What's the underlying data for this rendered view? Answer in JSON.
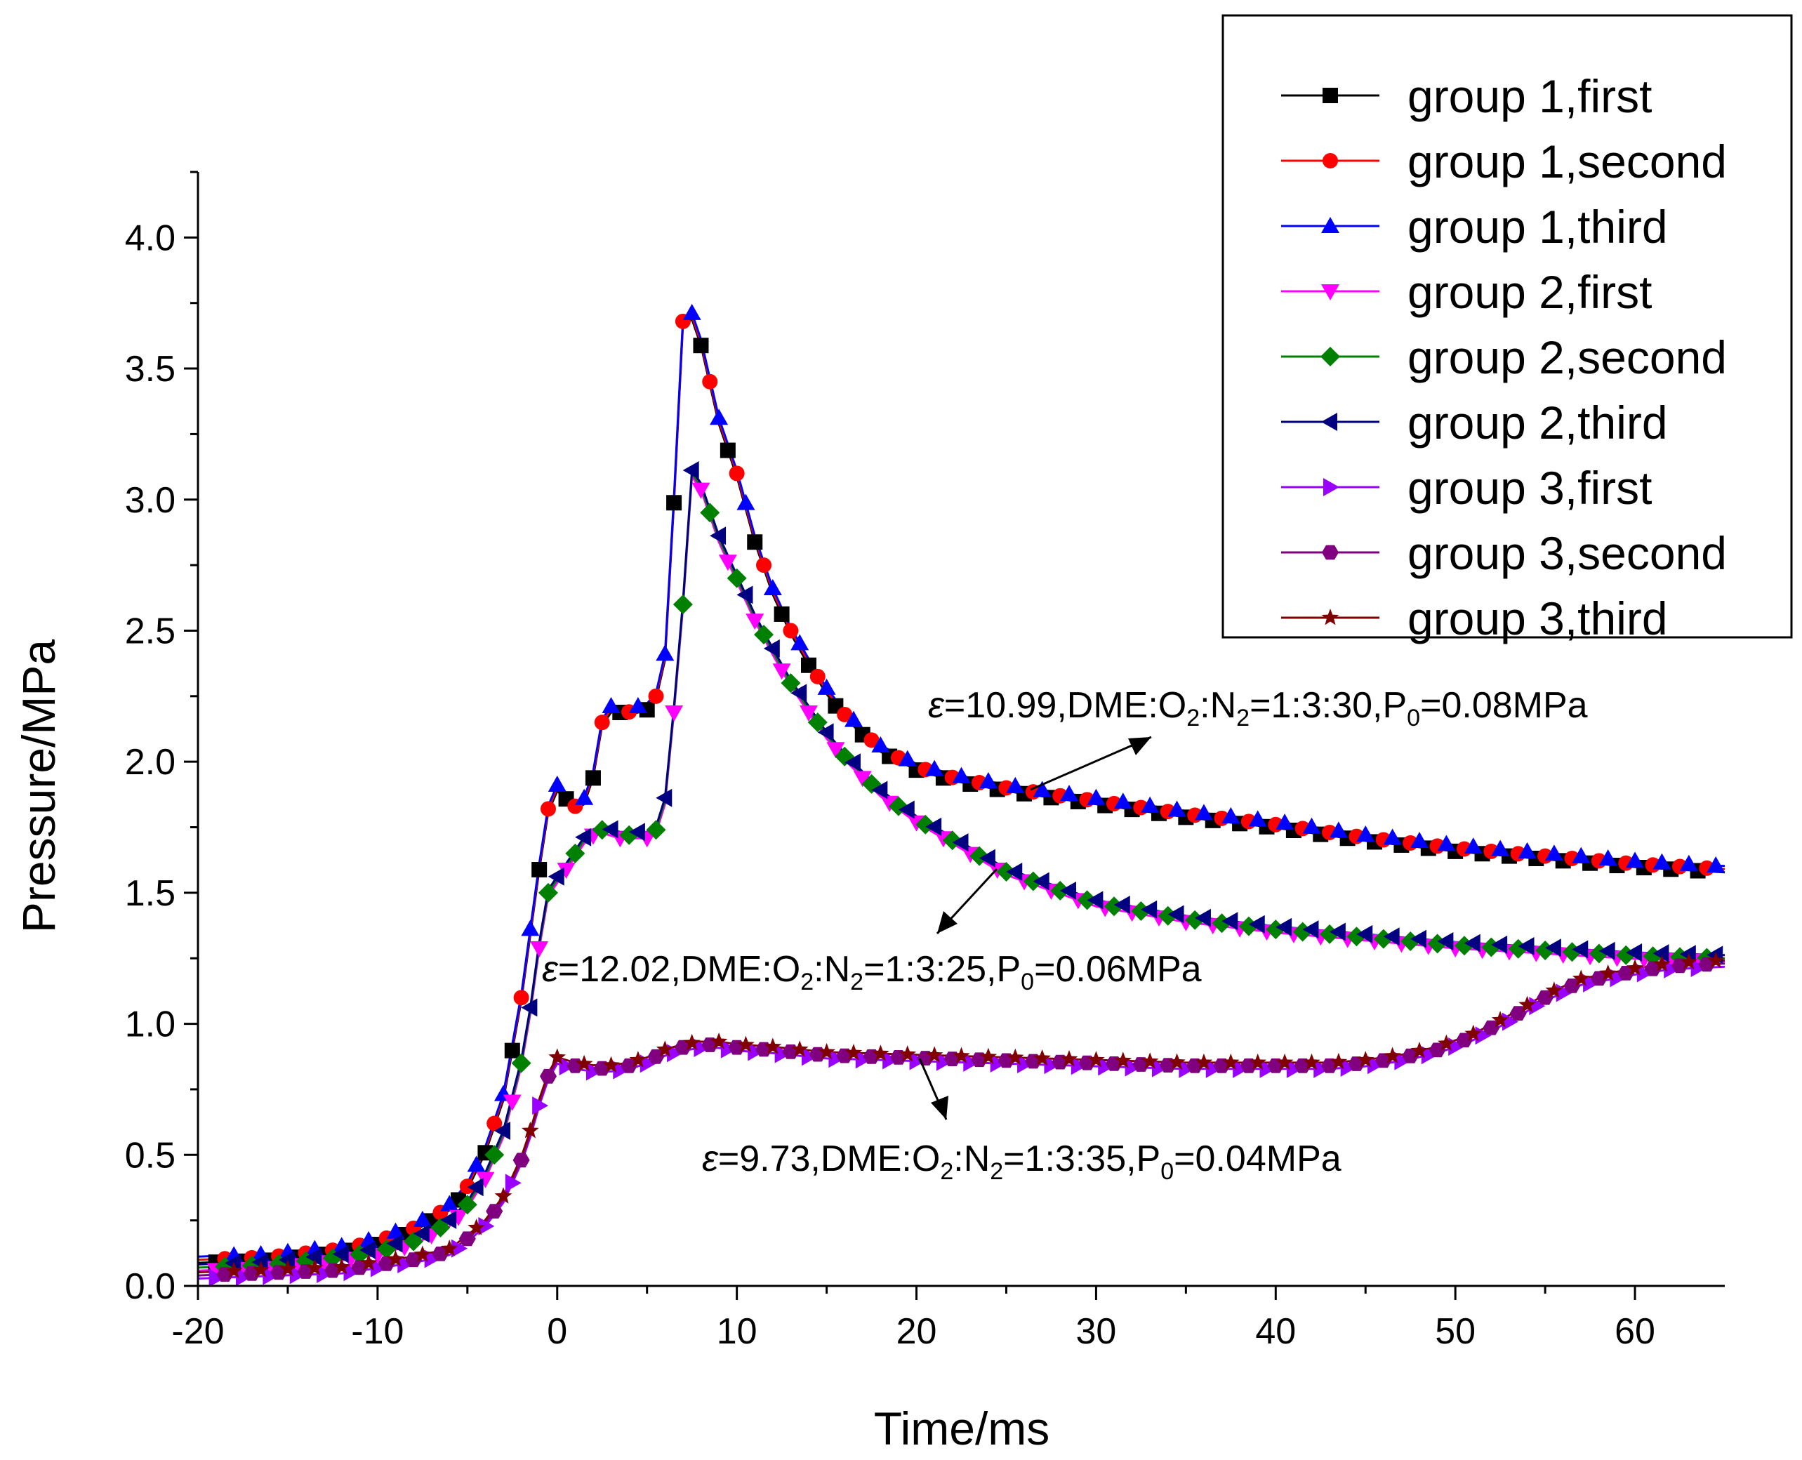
{
  "chart_data": {
    "type": "line",
    "xlabel": "Time/ms",
    "ylabel": "Pressure/MPa",
    "xlim": [
      -20,
      65
    ],
    "ylim": [
      0,
      4.25
    ],
    "xticks": [
      -20,
      -10,
      0,
      10,
      20,
      30,
      40,
      50,
      60
    ],
    "xtick_labels": [
      "-20",
      "-10",
      "0",
      "10",
      "20",
      "30",
      "40",
      "50",
      "60"
    ],
    "yticks": [
      0,
      0.5,
      1,
      1.5,
      2,
      2.5,
      3,
      3.5,
      4
    ],
    "ytick_labels": [
      "0.0",
      "0.5",
      "1.0",
      "1.5",
      "2.0",
      "2.5",
      "3.0",
      "3.5",
      "4.0"
    ],
    "grid": false,
    "legend_position": "top-right",
    "series": [
      {
        "name": "group 1,first",
        "group": 1,
        "color": "#000000",
        "marker": "square"
      },
      {
        "name": "group 1,second",
        "group": 1,
        "color": "#ff0000",
        "marker": "circle"
      },
      {
        "name": "group 1,third",
        "group": 1,
        "color": "#0000ff",
        "marker": "triangle-up"
      },
      {
        "name": "group 2,first",
        "group": 2,
        "color": "#ff00ff",
        "marker": "triangle-down"
      },
      {
        "name": "group 2,second",
        "group": 2,
        "color": "#008000",
        "marker": "diamond"
      },
      {
        "name": "group 2,third",
        "group": 2,
        "color": "#000080",
        "marker": "triangle-left"
      },
      {
        "name": "group 3,first",
        "group": 3,
        "color": "#9900ff",
        "marker": "triangle-right"
      },
      {
        "name": "group 3,second",
        "group": 3,
        "color": "#800080",
        "marker": "hexagon"
      },
      {
        "name": "group 3,third",
        "group": 3,
        "color": "#800000",
        "marker": "star"
      }
    ],
    "curves": {
      "1": {
        "x": [
          -20,
          -16,
          -12,
          -10,
          -8,
          -6,
          -5,
          -4,
          -3,
          -2,
          -1.5,
          -1,
          -0.5,
          0,
          0.5,
          1,
          1.5,
          2,
          2.5,
          3,
          3.5,
          4,
          4.5,
          5,
          5.5,
          6,
          6.5,
          7,
          7.5,
          8,
          8.5,
          9,
          10,
          11,
          12,
          13,
          14,
          15,
          16,
          18,
          20,
          22,
          25,
          30,
          35,
          40,
          45,
          50,
          55,
          60,
          65
        ],
        "y": [
          0.1,
          0.11,
          0.14,
          0.17,
          0.22,
          0.3,
          0.38,
          0.52,
          0.72,
          1.1,
          1.35,
          1.6,
          1.82,
          1.9,
          1.87,
          1.83,
          1.85,
          1.95,
          2.15,
          2.2,
          2.2,
          2.19,
          2.2,
          2.21,
          2.25,
          2.4,
          3.0,
          3.68,
          3.7,
          3.6,
          3.45,
          3.3,
          3.1,
          2.85,
          2.65,
          2.5,
          2.38,
          2.27,
          2.18,
          2.05,
          1.98,
          1.94,
          1.9,
          1.85,
          1.8,
          1.76,
          1.71,
          1.67,
          1.64,
          1.61,
          1.59
        ]
      },
      "2": {
        "x": [
          -20,
          -16,
          -12,
          -10,
          -8,
          -6,
          -5,
          -4,
          -3,
          -2,
          -1.5,
          -1,
          -0.5,
          0,
          0.5,
          1,
          1.5,
          2,
          2.5,
          3,
          3.5,
          4,
          4.5,
          5,
          5.5,
          6,
          6.5,
          7,
          7.5,
          8,
          8.5,
          9,
          10,
          11,
          12,
          13,
          14,
          15,
          16,
          18,
          20,
          22,
          25,
          30,
          35,
          40,
          45,
          50,
          55,
          60,
          65
        ],
        "y": [
          0.07,
          0.08,
          0.11,
          0.13,
          0.17,
          0.24,
          0.31,
          0.42,
          0.58,
          0.85,
          1.05,
          1.3,
          1.5,
          1.55,
          1.6,
          1.65,
          1.7,
          1.73,
          1.74,
          1.73,
          1.72,
          1.72,
          1.72,
          1.72,
          1.74,
          1.85,
          2.2,
          2.6,
          3.1,
          3.05,
          2.95,
          2.85,
          2.7,
          2.55,
          2.42,
          2.3,
          2.2,
          2.1,
          2.02,
          1.88,
          1.78,
          1.7,
          1.58,
          1.46,
          1.4,
          1.36,
          1.33,
          1.3,
          1.28,
          1.26,
          1.25
        ]
      },
      "3": {
        "x": [
          -20,
          -16,
          -12,
          -10,
          -8,
          -6,
          -5,
          -4,
          -3,
          -2,
          -1.5,
          -1,
          -0.5,
          0,
          1,
          2,
          3,
          4,
          5,
          6,
          7,
          8,
          9,
          10,
          12,
          15,
          20,
          25,
          30,
          35,
          40,
          43,
          45,
          47,
          49,
          51,
          53,
          55,
          57,
          60,
          62,
          65
        ],
        "y": [
          0.04,
          0.05,
          0.06,
          0.08,
          0.1,
          0.13,
          0.18,
          0.24,
          0.33,
          0.48,
          0.58,
          0.7,
          0.8,
          0.86,
          0.84,
          0.83,
          0.83,
          0.84,
          0.86,
          0.89,
          0.91,
          0.92,
          0.92,
          0.91,
          0.9,
          0.88,
          0.87,
          0.86,
          0.85,
          0.84,
          0.84,
          0.84,
          0.85,
          0.87,
          0.9,
          0.95,
          1.02,
          1.1,
          1.16,
          1.2,
          1.22,
          1.23
        ]
      }
    },
    "annotations": [
      {
        "text": "ε=10.99,DME:O2:N2=1:3:30,P0=0.08MPa",
        "prefix": "=10.99,DME:O",
        "mid1": ":N",
        "mid2": "=1:3:30,P",
        "suffix": "=0.08MPa",
        "sub1": "2",
        "sub2": "2",
        "sub3": "0",
        "eps": "ε"
      },
      {
        "text": "ε=12.02,DME:O2:N2=1:3:25,P0=0.06MPa",
        "prefix": "=12.02,DME:O",
        "mid1": ":N",
        "mid2": "=1:3:25,P",
        "suffix": "=0.06MPa",
        "sub1": "2",
        "sub2": "2",
        "sub3": "0",
        "eps": "ε"
      },
      {
        "text": "ε=9.73,DME:O2:N2=1:3:35,P0=0.04MPa",
        "prefix": "=9.73,DME:O",
        "mid1": ":N",
        "mid2": "=1:3:35,P",
        "suffix": "=0.04MPa",
        "sub1": "2",
        "sub2": "2",
        "sub3": "0",
        "eps": "ε"
      }
    ]
  }
}
